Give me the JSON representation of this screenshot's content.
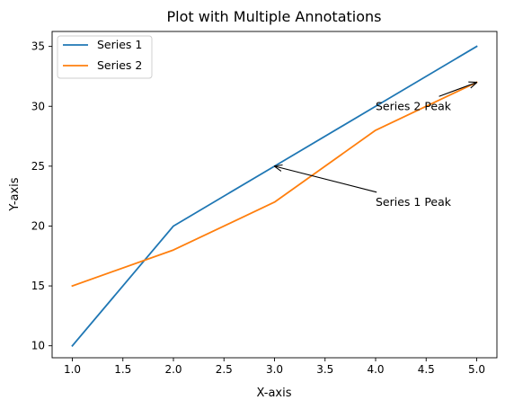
{
  "chart_data": {
    "type": "line",
    "title": "Plot with Multiple Annotations",
    "xlabel": "X-axis",
    "ylabel": "Y-axis",
    "xlim": [
      0.8,
      5.2
    ],
    "ylim": [
      9,
      36.25
    ],
    "x_ticks": [
      1.0,
      1.5,
      2.0,
      2.5,
      3.0,
      3.5,
      4.0,
      4.5,
      5.0
    ],
    "x_tick_labels": [
      "1.0",
      "1.5",
      "2.0",
      "2.5",
      "3.0",
      "3.5",
      "4.0",
      "4.5",
      "5.0"
    ],
    "y_ticks": [
      10,
      15,
      20,
      25,
      30,
      35
    ],
    "y_tick_labels": [
      "10",
      "15",
      "20",
      "25",
      "30",
      "35"
    ],
    "grid": false,
    "legend": {
      "position": "top-left"
    },
    "x": [
      1,
      2,
      3,
      4,
      5
    ],
    "series": [
      {
        "name": "Series 1",
        "color": "#1f77b4",
        "values": [
          10,
          20,
          25,
          30,
          35
        ]
      },
      {
        "name": "Series 2",
        "color": "#ff7f0e",
        "values": [
          15,
          18,
          22,
          28,
          32
        ]
      }
    ],
    "annotations": [
      {
        "text": "Series 1 Peak",
        "point": [
          3,
          25
        ],
        "text_at": [
          4,
          22
        ]
      },
      {
        "text": "Series 2 Peak",
        "point": [
          5,
          32
        ],
        "text_at": [
          4,
          30
        ]
      }
    ]
  }
}
